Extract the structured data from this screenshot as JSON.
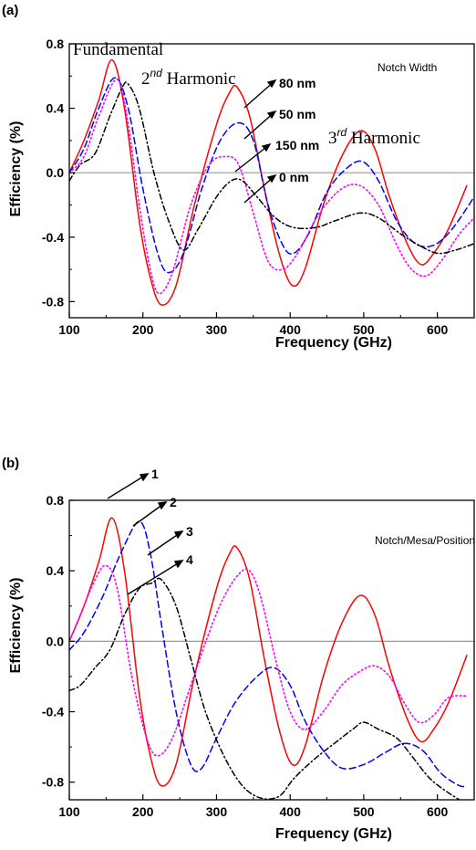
{
  "chart_data": [
    {
      "type": "line",
      "panel": "(a)",
      "xlabel": "Frequency (GHz)",
      "ylabel": "Efficiency (%)",
      "xlim": [
        100,
        650
      ],
      "ylim": [
        -0.9,
        0.8
      ],
      "xticks": [
        100,
        200,
        300,
        400,
        500,
        600
      ],
      "yticks": [
        -0.8,
        -0.4,
        0.0,
        0.4,
        0.8
      ],
      "xtick_labels": [
        "100",
        "200",
        "300",
        "400",
        "500",
        "600"
      ],
      "ytick_labels": [
        "-0.8",
        "-0.4",
        "0.0",
        "0.4",
        "0.8"
      ],
      "zero_line": true,
      "annotations": {
        "fundamental": "Fundamental",
        "second_base": "2",
        "second_sup": "nd",
        "second_rest": " Harmonic",
        "third_base": "3",
        "third_sup": "rd",
        "third_rest": " Harmonic",
        "legend_title": "Notch Width",
        "labels": [
          "80 nm",
          "50 nm",
          "150 nm",
          "0 nm"
        ]
      },
      "series": [
        {
          "name": "80 nm",
          "color": "#ff0000",
          "dash": "solid",
          "points": [
            [
              100,
              0.0
            ],
            [
              120,
              0.2
            ],
            [
              140,
              0.45
            ],
            [
              158,
              0.7
            ],
            [
              175,
              0.4
            ],
            [
              195,
              -0.3
            ],
            [
              210,
              -0.65
            ],
            [
              225,
              -0.82
            ],
            [
              245,
              -0.7
            ],
            [
              270,
              -0.2
            ],
            [
              300,
              0.3
            ],
            [
              318,
              0.5
            ],
            [
              328,
              0.53
            ],
            [
              345,
              0.35
            ],
            [
              365,
              -0.1
            ],
            [
              385,
              -0.5
            ],
            [
              403,
              -0.7
            ],
            [
              420,
              -0.6
            ],
            [
              445,
              -0.2
            ],
            [
              470,
              0.1
            ],
            [
              495,
              0.26
            ],
            [
              515,
              0.15
            ],
            [
              535,
              -0.15
            ],
            [
              560,
              -0.45
            ],
            [
              578,
              -0.57
            ],
            [
              595,
              -0.5
            ],
            [
              615,
              -0.35
            ],
            [
              640,
              -0.08
            ]
          ]
        },
        {
          "name": "50 nm",
          "color": "#0000ff",
          "dash": "dashed",
          "points": [
            [
              100,
              0.0
            ],
            [
              120,
              0.15
            ],
            [
              140,
              0.4
            ],
            [
              162,
              0.59
            ],
            [
              180,
              0.4
            ],
            [
              200,
              -0.1
            ],
            [
              220,
              -0.5
            ],
            [
              235,
              -0.62
            ],
            [
              255,
              -0.5
            ],
            [
              280,
              -0.1
            ],
            [
              305,
              0.2
            ],
            [
              330,
              0.31
            ],
            [
              350,
              0.2
            ],
            [
              370,
              -0.2
            ],
            [
              390,
              -0.45
            ],
            [
              405,
              -0.5
            ],
            [
              425,
              -0.38
            ],
            [
              450,
              -0.12
            ],
            [
              475,
              0.02
            ],
            [
              498,
              0.07
            ],
            [
              520,
              -0.05
            ],
            [
              545,
              -0.3
            ],
            [
              570,
              -0.44
            ],
            [
              595,
              -0.45
            ],
            [
              620,
              -0.35
            ],
            [
              650,
              -0.15
            ]
          ]
        },
        {
          "name": "150 nm",
          "color": "#ff00ff",
          "dash": "dotted",
          "points": [
            [
              100,
              0.0
            ],
            [
              120,
              0.1
            ],
            [
              140,
              0.35
            ],
            [
              165,
              0.58
            ],
            [
              180,
              0.3
            ],
            [
              195,
              -0.2
            ],
            [
              210,
              -0.6
            ],
            [
              222,
              -0.75
            ],
            [
              240,
              -0.62
            ],
            [
              265,
              -0.2
            ],
            [
              290,
              0.05
            ],
            [
              312,
              0.1
            ],
            [
              330,
              0.05
            ],
            [
              350,
              -0.25
            ],
            [
              370,
              -0.55
            ],
            [
              390,
              -0.6
            ],
            [
              410,
              -0.5
            ],
            [
              440,
              -0.25
            ],
            [
              470,
              -0.1
            ],
            [
              495,
              -0.08
            ],
            [
              520,
              -0.2
            ],
            [
              545,
              -0.45
            ],
            [
              565,
              -0.6
            ],
            [
              585,
              -0.64
            ],
            [
              605,
              -0.55
            ],
            [
              630,
              -0.38
            ],
            [
              650,
              -0.28
            ]
          ]
        },
        {
          "name": "0 nm",
          "color": "#000000",
          "dash": "dashdot",
          "points": [
            [
              100,
              -0.05
            ],
            [
              115,
              0.05
            ],
            [
              135,
              0.12
            ],
            [
              155,
              0.35
            ],
            [
              172,
              0.53
            ],
            [
              180,
              0.55
            ],
            [
              195,
              0.4
            ],
            [
              215,
              0.0
            ],
            [
              235,
              -0.3
            ],
            [
              255,
              -0.48
            ],
            [
              275,
              -0.35
            ],
            [
              300,
              -0.15
            ],
            [
              320,
              -0.05
            ],
            [
              335,
              -0.05
            ],
            [
              355,
              -0.15
            ],
            [
              380,
              -0.28
            ],
            [
              405,
              -0.34
            ],
            [
              435,
              -0.34
            ],
            [
              460,
              -0.3
            ],
            [
              495,
              -0.25
            ],
            [
              520,
              -0.28
            ],
            [
              550,
              -0.38
            ],
            [
              575,
              -0.45
            ],
            [
              600,
              -0.5
            ],
            [
              625,
              -0.48
            ],
            [
              650,
              -0.44
            ]
          ]
        }
      ]
    },
    {
      "type": "line",
      "panel": "(b)",
      "xlabel": "Frequency (GHz)",
      "ylabel": "Efficiency (%)",
      "xlim": [
        100,
        650
      ],
      "ylim": [
        -0.9,
        0.8
      ],
      "xticks": [
        100,
        200,
        300,
        400,
        500,
        600
      ],
      "yticks": [
        -0.8,
        -0.4,
        0.0,
        0.4,
        0.8
      ],
      "xtick_labels": [
        "100",
        "200",
        "300",
        "400",
        "500",
        "600"
      ],
      "ytick_labels": [
        "-0.8",
        "-0.4",
        "0.0",
        "0.4",
        "0.8"
      ],
      "zero_line": true,
      "annotations": {
        "legend_title": "Notch/Mesa/Position",
        "labels": [
          "1",
          "2",
          "3",
          "4"
        ]
      },
      "series": [
        {
          "name": "1",
          "color": "#ff0000",
          "dash": "solid",
          "points": [
            [
              100,
              0.0
            ],
            [
              120,
              0.2
            ],
            [
              140,
              0.45
            ],
            [
              158,
              0.7
            ],
            [
              175,
              0.4
            ],
            [
              195,
              -0.3
            ],
            [
              210,
              -0.65
            ],
            [
              225,
              -0.82
            ],
            [
              245,
              -0.7
            ],
            [
              270,
              -0.2
            ],
            [
              300,
              0.3
            ],
            [
              318,
              0.5
            ],
            [
              328,
              0.53
            ],
            [
              345,
              0.35
            ],
            [
              365,
              -0.1
            ],
            [
              385,
              -0.5
            ],
            [
              403,
              -0.7
            ],
            [
              420,
              -0.6
            ],
            [
              445,
              -0.2
            ],
            [
              470,
              0.1
            ],
            [
              495,
              0.26
            ],
            [
              515,
              0.15
            ],
            [
              535,
              -0.15
            ],
            [
              560,
              -0.45
            ],
            [
              578,
              -0.57
            ],
            [
              595,
              -0.5
            ],
            [
              615,
              -0.35
            ],
            [
              640,
              -0.08
            ]
          ]
        },
        {
          "name": "2",
          "color": "#0000ff",
          "dash": "dashed",
          "points": [
            [
              100,
              -0.05
            ],
            [
              120,
              0.05
            ],
            [
              145,
              0.25
            ],
            [
              170,
              0.5
            ],
            [
              195,
              0.68
            ],
            [
              210,
              0.5
            ],
            [
              225,
              0.1
            ],
            [
              245,
              -0.4
            ],
            [
              265,
              -0.7
            ],
            [
              280,
              -0.72
            ],
            [
              300,
              -0.55
            ],
            [
              325,
              -0.35
            ],
            [
              355,
              -0.2
            ],
            [
              378,
              -0.15
            ],
            [
              400,
              -0.25
            ],
            [
              420,
              -0.45
            ],
            [
              445,
              -0.62
            ],
            [
              470,
              -0.72
            ],
            [
              500,
              -0.7
            ],
            [
              530,
              -0.63
            ],
            [
              555,
              -0.58
            ],
            [
              580,
              -0.62
            ],
            [
              605,
              -0.75
            ],
            [
              630,
              -0.82
            ],
            [
              640,
              -0.82
            ]
          ]
        },
        {
          "name": "3",
          "color": "#ff00ff",
          "dash": "dotted",
          "points": [
            [
              100,
              0.0
            ],
            [
              115,
              0.15
            ],
            [
              135,
              0.35
            ],
            [
              150,
              0.43
            ],
            [
              165,
              0.3
            ],
            [
              185,
              -0.2
            ],
            [
              205,
              -0.55
            ],
            [
              220,
              -0.65
            ],
            [
              240,
              -0.55
            ],
            [
              265,
              -0.25
            ],
            [
              290,
              0.05
            ],
            [
              310,
              0.25
            ],
            [
              330,
              0.38
            ],
            [
              345,
              0.4
            ],
            [
              360,
              0.25
            ],
            [
              380,
              -0.1
            ],
            [
              400,
              -0.4
            ],
            [
              420,
              -0.5
            ],
            [
              445,
              -0.4
            ],
            [
              470,
              -0.25
            ],
            [
              495,
              -0.17
            ],
            [
              515,
              -0.14
            ],
            [
              535,
              -0.2
            ],
            [
              555,
              -0.35
            ],
            [
              575,
              -0.46
            ],
            [
              595,
              -0.42
            ],
            [
              615,
              -0.32
            ],
            [
              640,
              -0.31
            ]
          ]
        },
        {
          "name": "4",
          "color": "#000000",
          "dash": "dashdot",
          "points": [
            [
              100,
              -0.28
            ],
            [
              115,
              -0.25
            ],
            [
              135,
              -0.15
            ],
            [
              155,
              -0.05
            ],
            [
              175,
              0.15
            ],
            [
              195,
              0.3
            ],
            [
              212,
              0.33
            ],
            [
              225,
              0.35
            ],
            [
              245,
              0.2
            ],
            [
              265,
              -0.1
            ],
            [
              285,
              -0.4
            ],
            [
              310,
              -0.65
            ],
            [
              335,
              -0.82
            ],
            [
              360,
              -0.89
            ],
            [
              385,
              -0.88
            ],
            [
              405,
              -0.78
            ],
            [
              430,
              -0.68
            ],
            [
              460,
              -0.58
            ],
            [
              485,
              -0.5
            ],
            [
              500,
              -0.46
            ],
            [
              520,
              -0.5
            ],
            [
              545,
              -0.55
            ],
            [
              565,
              -0.65
            ],
            [
              590,
              -0.78
            ],
            [
              615,
              -0.86
            ],
            [
              630,
              -0.9
            ]
          ]
        }
      ]
    }
  ]
}
